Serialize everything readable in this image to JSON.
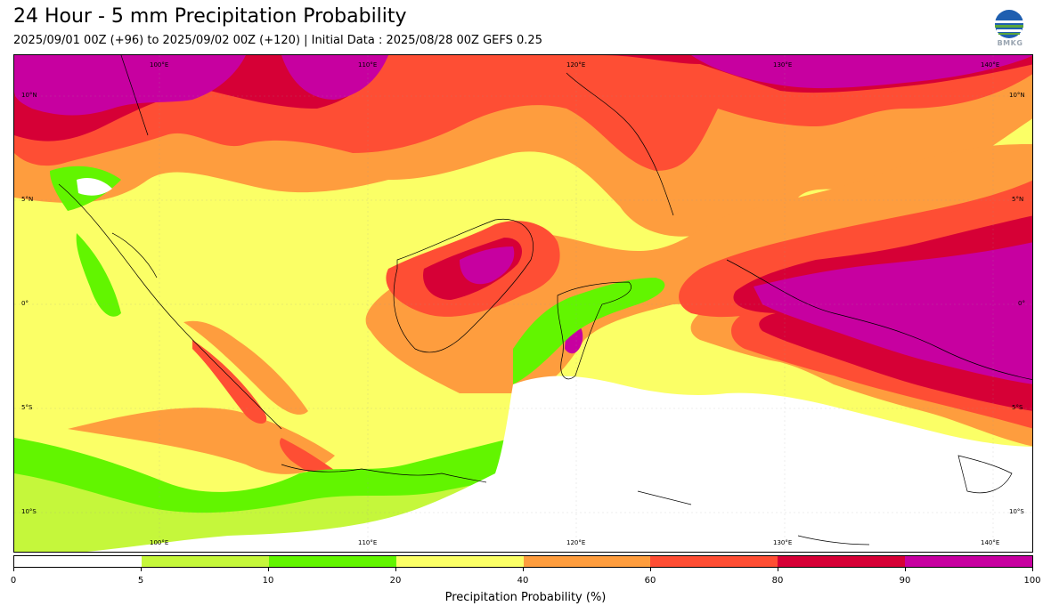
{
  "title": "24 Hour - 5 mm Precipitation Probability",
  "subtitle": "2025/09/01 00Z (+96) to 2025/09/02 00Z (+120) | Initial Data : 2025/08/28 00Z GEFS 0.25",
  "logo": {
    "icon": "bmkg-logo-icon",
    "text": "BMKG"
  },
  "map": {
    "lon_labels": [
      "100°E",
      "110°E",
      "120°E",
      "130°E",
      "140°E"
    ],
    "lat_labels_left": [
      "10°N",
      "5°N",
      "0°",
      "5°S",
      "10°S"
    ],
    "lat_labels_right": [
      "10°N",
      "5°N",
      "0°",
      "5°S",
      "10°S"
    ]
  },
  "colorbar": {
    "label": "Precipitation Probability (%)",
    "ticks": [
      "0",
      "5",
      "10",
      "20",
      "40",
      "60",
      "80",
      "90",
      "100"
    ],
    "colors": [
      "#ffffff",
      "#c5f73b",
      "#62f500",
      "#fbff66",
      "#fe9d3e",
      "#fe4e34",
      "#d60036",
      "#c700a0"
    ]
  }
}
